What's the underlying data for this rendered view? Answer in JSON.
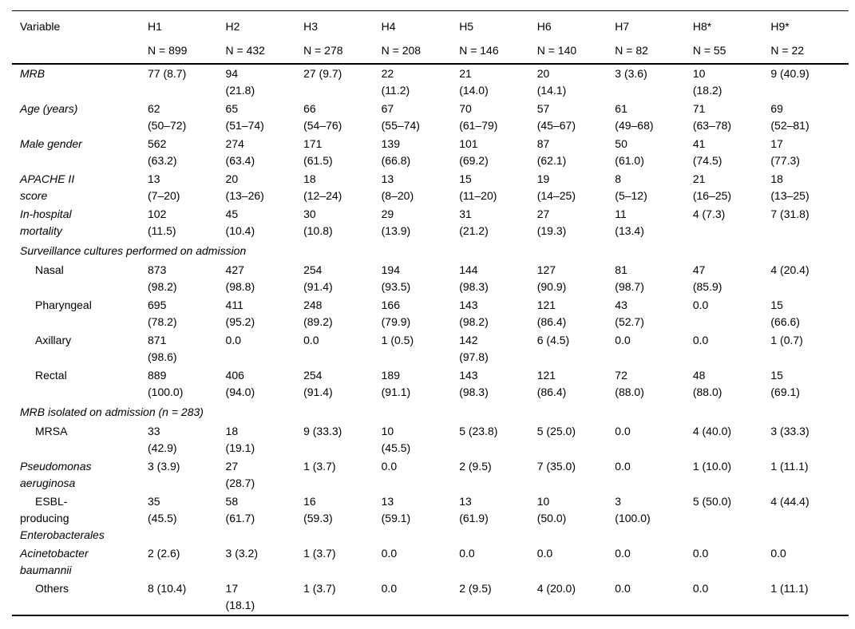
{
  "colors": {
    "text": "#000000",
    "background": "#ffffff",
    "rule": "#000000"
  },
  "table": {
    "header": {
      "variable_label": "Variable",
      "columns": [
        {
          "label": "H1",
          "n": "N = 899"
        },
        {
          "label": "H2",
          "n": "N = 432"
        },
        {
          "label": "H3",
          "n": "N = 278"
        },
        {
          "label": "H4",
          "n": "N = 208"
        },
        {
          "label": "H5",
          "n": "N = 146"
        },
        {
          "label": "H6",
          "n": "N = 140"
        },
        {
          "label": "H7",
          "n": "N = 82"
        },
        {
          "label": "H8*",
          "n": "N = 55"
        },
        {
          "label": "H9*",
          "n": "N = 22"
        }
      ]
    },
    "rows": [
      {
        "kind": "data",
        "id": "mrb",
        "label_lines": [
          {
            "text": "MRB",
            "italic": true,
            "indent": false
          }
        ],
        "cells": [
          "77 (8.7)",
          "94\n(21.8)",
          "27 (9.7)",
          "22\n(11.2)",
          "21\n(14.0)",
          "20\n(14.1)",
          "3 (3.6)",
          "10\n(18.2)",
          "9 (40.9)"
        ]
      },
      {
        "kind": "data",
        "id": "age-years",
        "label_lines": [
          {
            "text": "Age (years)",
            "italic": true,
            "indent": false
          }
        ],
        "cells": [
          "62\n(50–72)",
          "65\n(51–74)",
          "66\n(54–76)",
          "67\n(55–74)",
          "70\n(61–79)",
          "57\n(45–67)",
          "61\n(49–68)",
          "71\n(63–78)",
          "69\n(52–81)"
        ]
      },
      {
        "kind": "data",
        "id": "male-gender",
        "label_lines": [
          {
            "text": "Male gender",
            "italic": true,
            "indent": false
          }
        ],
        "cells": [
          "562\n(63.2)",
          "274\n(63.4)",
          "171\n(61.5)",
          "139\n(66.8)",
          "101\n(69.2)",
          "87\n(62.1)",
          "50\n(61.0)",
          "41\n(74.5)",
          "17\n(77.3)"
        ]
      },
      {
        "kind": "data",
        "id": "apache-ii-score",
        "label_lines": [
          {
            "text": "APACHE II",
            "italic": true,
            "indent": false
          },
          {
            "text": "score",
            "italic": true,
            "indent": false
          }
        ],
        "cells": [
          "13\n(7–20)",
          "20\n(13–26)",
          "18\n(12–24)",
          "13\n(8–20)",
          "15\n(11–20)",
          "19\n(14–25)",
          "8\n(5–12)",
          "21\n(16–25)",
          "18\n(13–25)"
        ]
      },
      {
        "kind": "data",
        "id": "in-hospital-mortality",
        "label_lines": [
          {
            "text": "In-hospital",
            "italic": true,
            "indent": false
          },
          {
            "text": "mortality",
            "italic": true,
            "indent": false
          }
        ],
        "cells": [
          "102\n(11.5)",
          "45\n(10.4)",
          "30\n(10.8)",
          "29\n(13.9)",
          "31\n(21.2)",
          "27\n(19.3)",
          "11\n(13.4)",
          "4 (7.3)",
          "7 (31.8)"
        ]
      },
      {
        "kind": "section",
        "id": "section-surveillance-cultures",
        "label_lines": [
          {
            "text": "Surveillance cultures performed on admission",
            "italic": true,
            "indent": false
          }
        ]
      },
      {
        "kind": "data",
        "id": "nasal",
        "label_lines": [
          {
            "text": "Nasal",
            "italic": false,
            "indent": true
          }
        ],
        "cells": [
          "873\n(98.2)",
          "427\n(98.8)",
          "254\n(91.4)",
          "194\n(93.5)",
          "144\n(98.3)",
          "127\n(90.9)",
          "81\n(98.7)",
          "47\n(85.9)",
          "4 (20.4)"
        ]
      },
      {
        "kind": "data",
        "id": "pharyngeal",
        "label_lines": [
          {
            "text": "Pharyngeal",
            "italic": false,
            "indent": true
          }
        ],
        "cells": [
          "695\n(78.2)",
          "411\n(95.2)",
          "248\n(89.2)",
          "166\n(79.9)",
          "143\n(98.2)",
          "121\n(86.4)",
          "43\n(52.7)",
          "0.0",
          "15\n(66.6)"
        ]
      },
      {
        "kind": "data",
        "id": "axillary",
        "label_lines": [
          {
            "text": "Axillary",
            "italic": false,
            "indent": true
          }
        ],
        "cells": [
          "871\n(98.6)",
          "0.0",
          "0.0",
          "1 (0.5)",
          "142\n(97.8)",
          "6 (4.5)",
          "0.0",
          "0.0",
          "1 (0.7)"
        ]
      },
      {
        "kind": "data",
        "id": "rectal",
        "label_lines": [
          {
            "text": "Rectal",
            "italic": false,
            "indent": true
          }
        ],
        "cells": [
          "889\n(100.0)",
          "406\n(94.0)",
          "254\n(91.4)",
          "189\n(91.1)",
          "143\n(98.3)",
          "121\n(86.4)",
          "72\n(88.0)",
          "48\n(88.0)",
          "15\n(69.1)"
        ]
      },
      {
        "kind": "section",
        "id": "section-mrb-isolated",
        "label_lines": [
          {
            "text": "MRB isolated on admission (n = 283)",
            "italic": true,
            "indent": false
          }
        ]
      },
      {
        "kind": "data",
        "id": "mrsa",
        "label_lines": [
          {
            "text": "MRSA",
            "italic": false,
            "indent": true
          }
        ],
        "cells": [
          "33\n(42.9)",
          "18\n(19.1)",
          "9 (33.3)",
          "10\n(45.5)",
          "5 (23.8)",
          "5 (25.0)",
          "0.0",
          "4 (40.0)",
          "3 (33.3)"
        ]
      },
      {
        "kind": "data",
        "id": "pseudomonas-aeruginosa",
        "label_lines": [
          {
            "text": "Pseudomonas",
            "italic": true,
            "indent": false
          },
          {
            "text": "aeruginosa",
            "italic": true,
            "indent": false
          }
        ],
        "cells": [
          "3 (3.9)",
          "27\n(28.7)",
          "1 (3.7)",
          "0.0",
          "2 (9.5)",
          "7 (35.0)",
          "0.0",
          "1 (10.0)",
          "1 (11.1)"
        ]
      },
      {
        "kind": "data",
        "id": "esbl-producing-enterobacterales",
        "label_lines": [
          {
            "text": "ESBL-",
            "italic": false,
            "indent": true
          },
          {
            "text": "producing",
            "italic": false,
            "indent": false
          },
          {
            "text": "Enterobacterales",
            "italic": true,
            "indent": false
          }
        ],
        "cells": [
          "35\n(45.5)",
          "58\n(61.7)",
          "16\n(59.3)",
          "13\n(59.1)",
          "13\n(61.9)",
          "10\n(50.0)",
          "3\n(100.0)",
          "5 (50.0)",
          "4 (44.4)"
        ]
      },
      {
        "kind": "data",
        "id": "acinetobacter-baumannii",
        "label_lines": [
          {
            "text": "Acinetobacter",
            "italic": true,
            "indent": false
          },
          {
            "text": "baumannii",
            "italic": true,
            "indent": false
          }
        ],
        "cells": [
          "2 (2.6)",
          "3 (3.2)",
          "1 (3.7)",
          "0.0",
          "0.0",
          "0.0",
          "0.0",
          "0.0",
          "0.0"
        ]
      },
      {
        "kind": "data",
        "id": "others",
        "label_lines": [
          {
            "text": "Others",
            "italic": false,
            "indent": true
          }
        ],
        "cells": [
          "8 (10.4)",
          "17\n(18.1)",
          "1 (3.7)",
          "0.0",
          "2 (9.5)",
          "4 (20.0)",
          "0.0",
          "0.0",
          "1 (11.1)"
        ]
      }
    ]
  }
}
